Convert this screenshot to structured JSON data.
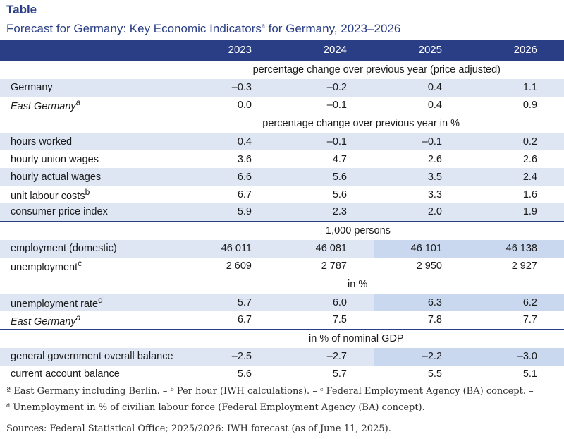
{
  "kicker": "Table",
  "title": "Forecast for Germany: Key Economic Indicators",
  "title_sup": "a",
  "title_suffix": " for Germany, 2023–2026",
  "header": {
    "label": "",
    "years": [
      "2023",
      "2024",
      "2025",
      "2026"
    ]
  },
  "sections": [
    {
      "unit": "percentage change over previous year (price adjusted)",
      "rows": [
        {
          "label": "Germany",
          "sup": "",
          "italic": false,
          "values": [
            "–0.3",
            "–0.2",
            "0.4",
            "1.1"
          ]
        },
        {
          "label": "East Germany",
          "sup": "a",
          "italic": true,
          "values": [
            "0.0",
            "–0.1",
            "0.4",
            "0.9"
          ]
        }
      ]
    },
    {
      "unit": "percentage change over previous year in %",
      "rows": [
        {
          "label": "hours worked",
          "sup": "",
          "italic": false,
          "values": [
            "0.4",
            "–0.1",
            "–0.1",
            "0.2"
          ]
        },
        {
          "label": "hourly union wages",
          "sup": "",
          "italic": false,
          "values": [
            "3.6",
            "4.7",
            "2.6",
            "2.6"
          ]
        },
        {
          "label": "hourly actual wages",
          "sup": "",
          "italic": false,
          "values": [
            "6.6",
            "5.6",
            "3.5",
            "2.4"
          ]
        },
        {
          "label": "unit labour costs",
          "sup": "b",
          "italic": false,
          "values": [
            "6.7",
            "5.6",
            "3.3",
            "1.6"
          ]
        },
        {
          "label": "consumer price index",
          "sup": "",
          "italic": false,
          "values": [
            "5.9",
            "2.3",
            "2.0",
            "1.9"
          ]
        }
      ]
    },
    {
      "unit": "1,000 persons",
      "rows": [
        {
          "label": "employment (domestic)",
          "sup": "",
          "italic": false,
          "values": [
            "46 011",
            "46 081",
            "46 101",
            "46 138"
          ]
        },
        {
          "label": "unemployment",
          "sup": "c",
          "italic": false,
          "values": [
            "2 609",
            "2 787",
            "2 950",
            "2 927"
          ]
        }
      ]
    },
    {
      "unit": "in %",
      "rows": [
        {
          "label": "unemployment rate",
          "sup": "d",
          "italic": false,
          "values": [
            "5.7",
            "6.0",
            "6.3",
            "6.2"
          ]
        },
        {
          "label": "East Germany",
          "sup": "a",
          "italic": true,
          "values": [
            "6.7",
            "7.5",
            "7.8",
            "7.7"
          ]
        }
      ]
    },
    {
      "unit": "in % of nominal GDP",
      "rows": [
        {
          "label": "general government overall balance",
          "sup": "",
          "italic": false,
          "values": [
            "–2.5",
            "–2.7",
            "–2.2",
            "–3.0"
          ]
        },
        {
          "label": "current account balance",
          "sup": "",
          "italic": false,
          "values": [
            "5.6",
            "5.7",
            "5.5",
            "5.1"
          ]
        }
      ]
    }
  ],
  "footnotes": {
    "line1": "ª East Germany including Berlin. – ᵇ Per hour (IWH calculations). – ᶜ Federal Employment Agency (BA) concept. –",
    "line2": "ᵈ Unemployment in % of civilian labour force (Federal Employment Agency (BA) concept).",
    "sources": "Sources: Federal Statistical Office; 2025/2026: IWH forecast (as of June 11, 2025)."
  },
  "colors": {
    "brand": "#2a3e85",
    "row_tint": "#dee6f4",
    "forecast_tint": "#c9d8ee"
  }
}
